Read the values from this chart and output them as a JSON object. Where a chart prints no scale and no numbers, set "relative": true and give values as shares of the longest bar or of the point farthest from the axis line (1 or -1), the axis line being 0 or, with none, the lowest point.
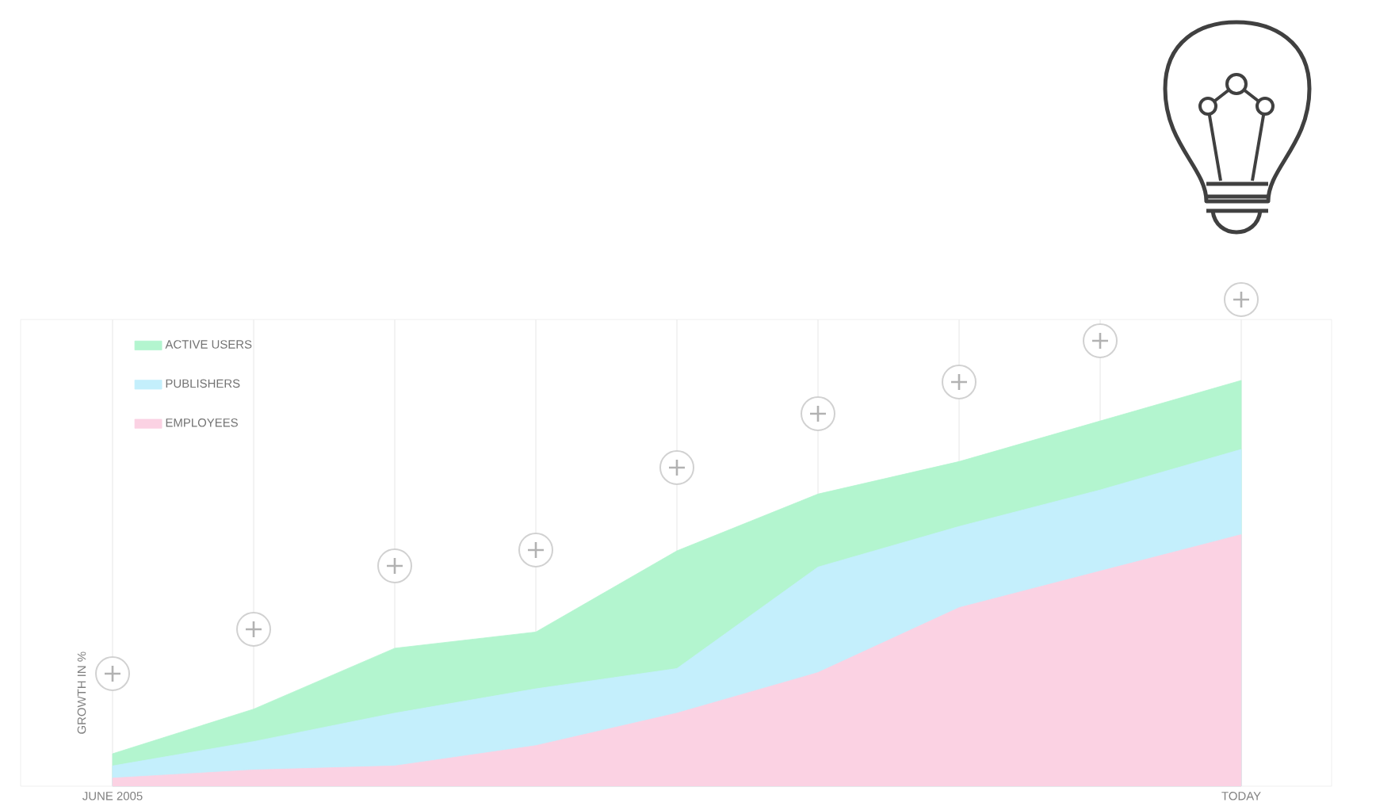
{
  "chart_data": {
    "type": "area",
    "relative": true,
    "ylabel": "GROWTH IN %",
    "legend": "top left",
    "grid": "x",
    "categories": [
      "JUNE 2005",
      null,
      null,
      null,
      null,
      null,
      null,
      null,
      "TODAY"
    ],
    "series": [
      {
        "name": "ACTIVE USERS",
        "color": "#b3f5cf",
        "values": [
          0.08,
          0.19,
          0.34,
          0.38,
          0.58,
          0.72,
          0.8,
          0.9,
          1
        ]
      },
      {
        "name": "PUBLISHERS",
        "color": "#c4effc",
        "values": [
          0.05,
          0.11,
          0.18,
          0.24,
          0.29,
          0.54,
          0.64,
          0.73,
          0.83
        ]
      },
      {
        "name": "EMPLOYEES",
        "color": "#fbd2e3",
        "values": [
          0.02,
          0.04,
          0.05,
          0.1,
          0.18,
          0.28,
          0.44,
          0.53,
          0.62
        ]
      }
    ]
  }
}
